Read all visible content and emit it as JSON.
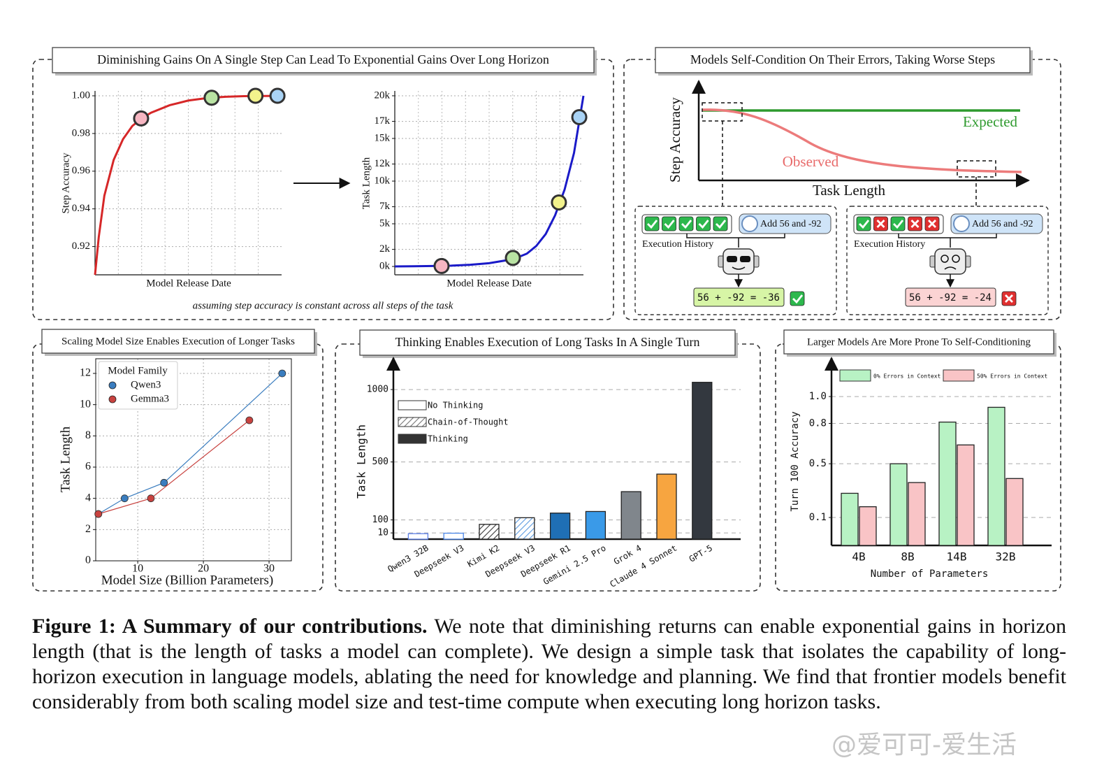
{
  "gains_panel": {
    "title": "Diminishing Gains On A Single Step Can Lead To Exponential Gains Over Long Horizon",
    "note": "assuming step accuracy is constant across all steps of the task"
  },
  "self_condition_panel": {
    "title": "Models Self-Condition On Their Errors, Taking Worse Steps",
    "y_label": "Step Accuracy",
    "x_label": "Task Length",
    "expected": "Expected",
    "observed": "Observed",
    "cases": [
      {
        "task": "Add 56 and -92",
        "history_label": "Execution History",
        "result": "56 + -92 = -36"
      },
      {
        "task": "Add 56 and -92",
        "history_label": "Execution History",
        "result": "56 + -92 = -24"
      }
    ]
  },
  "chart_data": [
    {
      "type": "line",
      "y_label": "Step Accuracy",
      "x_label": "Model Release Date",
      "xlim": [
        0,
        100
      ],
      "ylim": [
        0.905,
        1.0026
      ],
      "yticks": [
        0.92,
        0.94,
        0.96,
        0.98,
        {
          "value": 1,
          "label": "1.00"
        }
      ],
      "grid": true,
      "series": [
        {
          "x": [
            0,
            2,
            5,
            10,
            15,
            20,
            25,
            30,
            40,
            50,
            60,
            70,
            80,
            90,
            100
          ],
          "values": [
            0.905,
            0.925,
            0.947,
            0.966,
            0.977,
            0.984,
            0.988,
            0.991,
            0.995,
            0.9975,
            0.9988,
            0.9995,
            0.9998,
            0.9999,
            1.0
          ],
          "color": "#d62728"
        },
        {
          "x": [
            24.7,
            62.5,
            86,
            97.8
          ],
          "values": [
            0.988,
            0.999,
            1.0,
            1.0
          ],
          "colors": [
            "#f7b6c2",
            "#b9e3a3",
            "#f2f28c",
            "#a9d3f5"
          ],
          "line": false,
          "marker": true
        }
      ]
    },
    {
      "type": "line",
      "y_label": "Task Length",
      "x_label": "Model Release Date",
      "xlim": [
        0,
        100
      ],
      "ylim": [
        -980,
        20570
      ],
      "yticks": [
        {
          "value": 0,
          "label": "0k"
        },
        {
          "value": 2000,
          "label": "2k"
        },
        {
          "value": 5000,
          "label": "5k"
        },
        {
          "value": 7000,
          "label": "7k"
        },
        {
          "value": 10000,
          "label": "10k"
        },
        {
          "value": 12000,
          "label": "12k"
        },
        {
          "value": 15000,
          "label": "15k"
        },
        {
          "value": 17000,
          "label": "17k"
        },
        {
          "value": 20000,
          "label": "20k"
        }
      ],
      "grid": true,
      "series": [
        {
          "x": [
            0,
            10,
            20,
            30,
            40,
            50,
            60,
            65,
            70,
            75,
            80,
            85,
            90,
            95,
            100
          ],
          "values": [
            0,
            20,
            50,
            100,
            200,
            380,
            750,
            1050,
            1500,
            2400,
            3800,
            6000,
            9000,
            13300,
            20000
          ],
          "color": "#1a1ac8"
        },
        {
          "x": [
            24.8,
            62.6,
            87,
            97.8
          ],
          "values": [
            50,
            1000,
            7500,
            17500
          ],
          "colors": [
            "#f7b6c2",
            "#b9e3a3",
            "#f2f28c",
            "#a9d3f5"
          ],
          "line": false,
          "marker": true
        }
      ]
    },
    {
      "type": "line",
      "title": "Scaling Model Size Enables Execution of Longer Tasks",
      "y_label": "Task Length",
      "x_label": "Model Size (Billion Parameters)",
      "xlim": [
        3.6,
        33.4
      ],
      "ylim": [
        0,
        12.94
      ],
      "xticks": [
        10,
        20,
        30
      ],
      "yticks": [
        0,
        2,
        4,
        6,
        8,
        10,
        12
      ],
      "grid": true,
      "legend": "upper left",
      "legend_title": "Model Family",
      "series": [
        {
          "name": "Qwen3",
          "color": "#3a7dbf",
          "x": [
            4,
            8,
            14,
            32
          ],
          "values": [
            3,
            4,
            5,
            12
          ],
          "marker": true
        },
        {
          "name": "Gemma3",
          "color": "#c8423f",
          "x": [
            4,
            12,
            27
          ],
          "values": [
            3,
            4,
            9
          ],
          "marker": true
        }
      ]
    },
    {
      "type": "bar",
      "title": "Thinking Enables Execution of Long Tasks In A Single Turn",
      "y_label": "Task Length",
      "ylim": [
        -33,
        1179
      ],
      "yticks": [
        10,
        100,
        500,
        1000
      ],
      "grid": true,
      "legend": "upper left",
      "categories": [
        "Qwen3 32B",
        "Deepseek V3",
        "Kimi K2",
        "Deepseek V3",
        "Deepseek R1",
        "Gemini 2.5 Pro",
        "Grok 4",
        "Claude 4 Sonnet",
        "GPT-5"
      ],
      "colors": [
        "#5b7fe8",
        "#4a86e8",
        "#3a3a3a",
        "#5a9ae0",
        "#1f6fb5",
        "#3a9ae8",
        "#80868c",
        "#f7a540",
        "#33383f"
      ],
      "series": [
        {
          "name": "No Thinking",
          "fill": "outline",
          "values": [
            5,
            8,
            null,
            null,
            null,
            null,
            null,
            null,
            null
          ]
        },
        {
          "name": "Chain-of-Thought",
          "fill": "hatch",
          "values": [
            null,
            null,
            69,
            115,
            null,
            null,
            null,
            null,
            null
          ]
        },
        {
          "name": "Thinking",
          "fill": "solid",
          "values": [
            null,
            null,
            null,
            null,
            147,
            158,
            295,
            416,
            1050
          ]
        }
      ]
    },
    {
      "type": "bar",
      "title": "Larger Models Are More Prone To Self-Conditioning",
      "y_label": "Turn 100 Accuracy",
      "x_label": "Number of Parameters",
      "ylim": [
        -0.108,
        1.245
      ],
      "yticks": [
        0.1,
        0.5,
        0.8,
        {
          "value": 1,
          "label": "1.0"
        }
      ],
      "grid": true,
      "legend": "upper center",
      "categories": [
        "4B",
        "8B",
        "14B",
        "32B"
      ],
      "series": [
        {
          "name": "0% Errors in Context",
          "color": "#b8f2c4",
          "fill": "solid",
          "values": [
            0.28,
            0.5,
            0.81,
            0.92
          ]
        },
        {
          "name": "50% Errors in Context",
          "color": "#f9c4c6",
          "fill": "solid",
          "values": [
            0.18,
            0.36,
            0.64,
            0.39
          ]
        }
      ]
    }
  ],
  "caption": {
    "label": "Figure 1: A Summary of our contributions.",
    "text": "We note that diminishing returns can enable exponential gains in horizon length (that is the length of tasks a model can complete). We design a simple task that isolates the capability of long-horizon execution in language models, ablating the need for knowledge and planning. We find that frontier models benefit considerably from both scaling model size and test-time compute when executing long horizon tasks."
  },
  "watermark": "@爱可可-爱生活"
}
